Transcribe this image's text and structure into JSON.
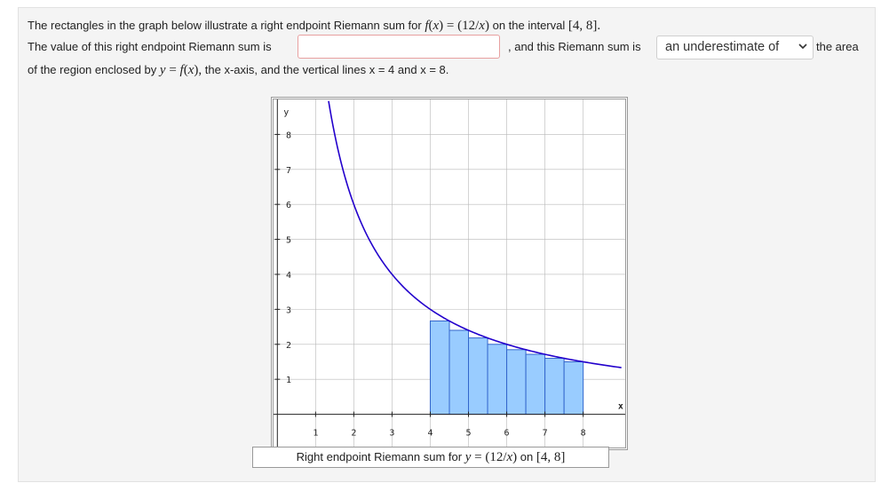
{
  "question": {
    "line1_a": "The rectangles in the graph below illustrate a right endpoint Riemann sum for",
    "line1_fx": "f(x) = (12/x)",
    "line1_b": "on the interval",
    "line1_interval": "[4, 8].",
    "line2_a": "The value of this right endpoint Riemann sum is",
    "answer_value": "",
    "line2_b": ", and this Riemann sum is",
    "select_value": "an underestimate of",
    "line2_c": "the area",
    "line3_a": "of the region enclosed by",
    "line3_eq": "y = f(x),",
    "line3_b": "the x-axis, and the vertical lines x = 4 and x = 8."
  },
  "caption": {
    "text": "Right endpoint Riemann sum for",
    "eq": "y = (12/x)",
    "on": "on",
    "interval": "[4, 8]"
  },
  "chart_data": {
    "type": "bar",
    "function": "12/x",
    "xlabel": "x",
    "ylabel": "y",
    "xlim": [
      -0.1,
      9.1
    ],
    "ylim": [
      -0.95,
      9
    ],
    "xticks": [
      1,
      2,
      3,
      4,
      5,
      6,
      7,
      8
    ],
    "yticks": [
      1,
      2,
      3,
      4,
      5,
      6,
      7,
      8
    ],
    "curve_x_range": [
      1.34,
      9.0
    ],
    "rect_width": 0.5,
    "rects": [
      {
        "x0": 4.0,
        "x1": 4.5,
        "y": 2.667
      },
      {
        "x0": 4.5,
        "x1": 5.0,
        "y": 2.4
      },
      {
        "x0": 5.0,
        "x1": 5.5,
        "y": 2.182
      },
      {
        "x0": 5.5,
        "x1": 6.0,
        "y": 2.0
      },
      {
        "x0": 6.0,
        "x1": 6.5,
        "y": 1.846
      },
      {
        "x0": 6.5,
        "x1": 7.0,
        "y": 1.714
      },
      {
        "x0": 7.0,
        "x1": 7.5,
        "y": 1.6
      },
      {
        "x0": 7.5,
        "x1": 8.0,
        "y": 1.5
      }
    ],
    "colors": {
      "curve": "#2200cc",
      "rect_fill": "#99ccff",
      "rect_stroke": "#3366cc",
      "grid": "#b8b8b8"
    }
  }
}
